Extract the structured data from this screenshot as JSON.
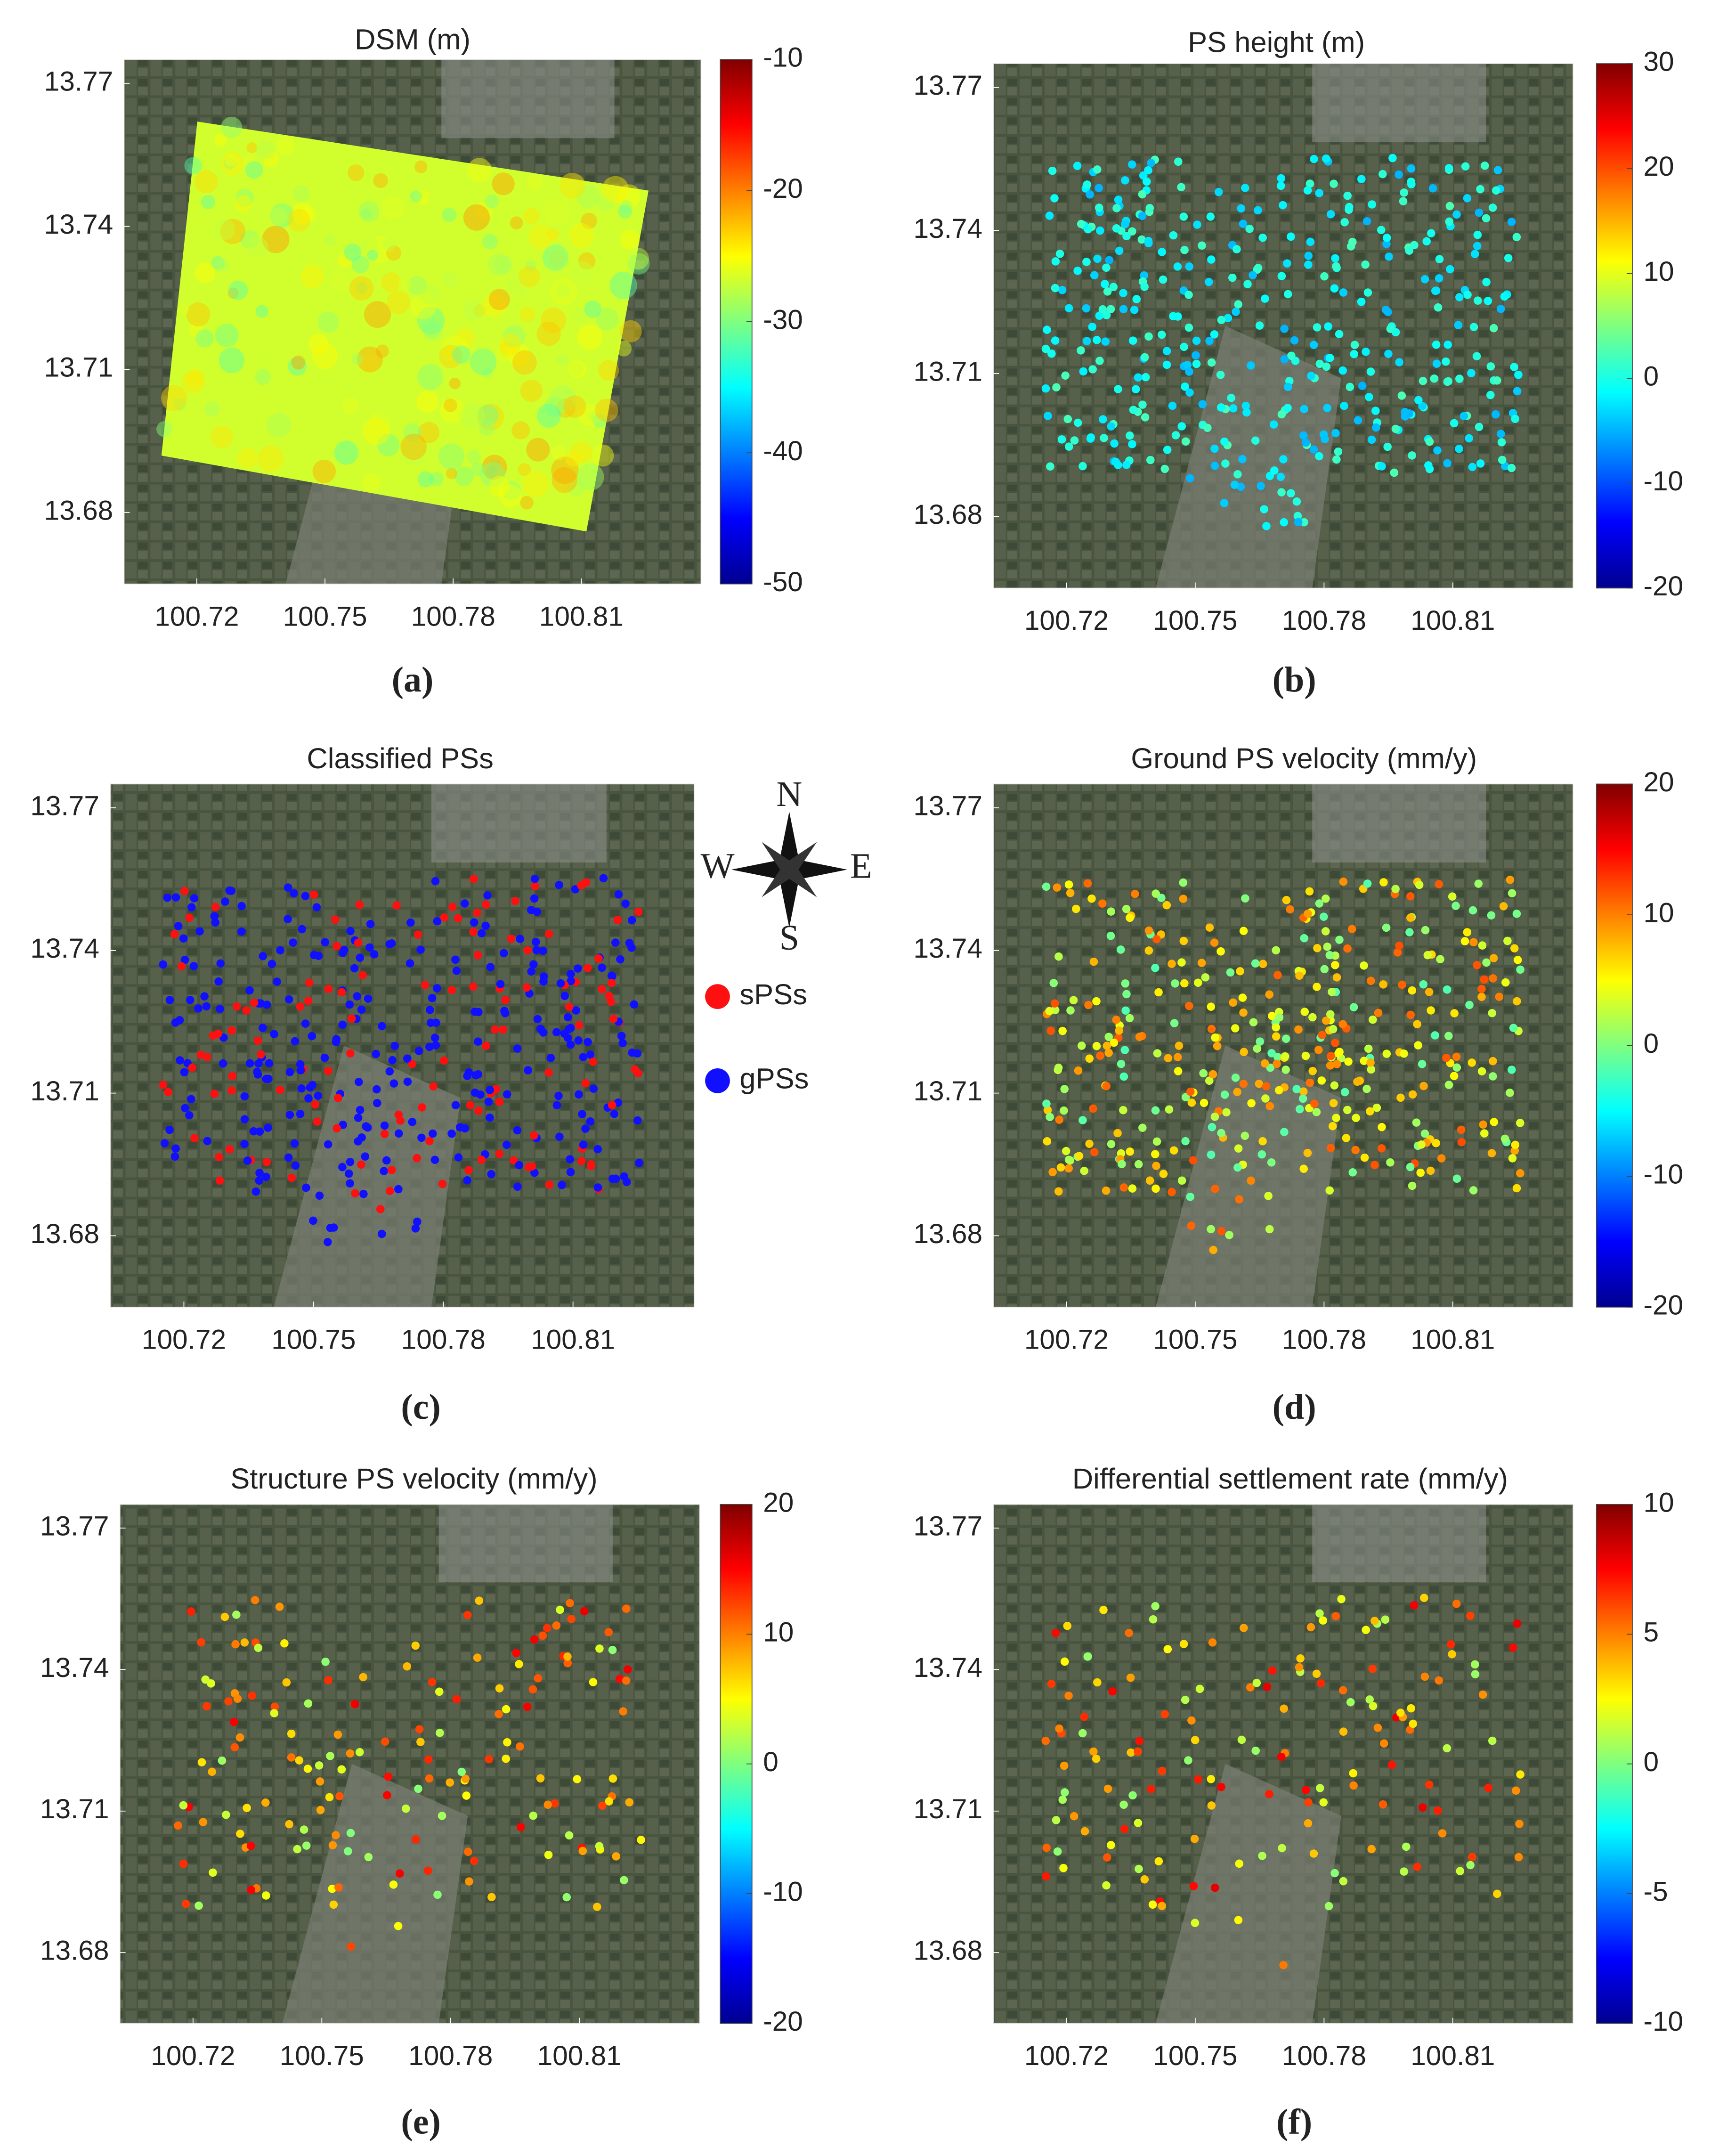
{
  "chart_data": [
    {
      "type": "map",
      "title": "DSM (m)",
      "panel_label": "(a)",
      "xlim": [
        100.703,
        100.838
      ],
      "ylim": [
        13.665,
        13.775
      ],
      "xticks": [
        100.72,
        100.75,
        100.78,
        100.81
      ],
      "yticks": [
        13.68,
        13.71,
        13.74,
        13.77
      ],
      "colorbar": {
        "lim": [
          -50,
          -10
        ],
        "ticks": [
          -50,
          -40,
          -30,
          -20,
          -10
        ]
      }
    },
    {
      "type": "map",
      "title": "PS height (m)",
      "panel_label": "(b)",
      "xlim": [
        100.703,
        100.838
      ],
      "ylim": [
        13.665,
        13.775
      ],
      "xticks": [
        100.72,
        100.75,
        100.78,
        100.81
      ],
      "yticks": [
        13.68,
        13.71,
        13.74,
        13.77
      ],
      "colorbar": {
        "lim": [
          -20,
          30
        ],
        "ticks": [
          -20,
          -10,
          0,
          10,
          20,
          30
        ]
      }
    },
    {
      "type": "map",
      "title": "Classified PSs",
      "panel_label": "(c)",
      "xlim": [
        100.703,
        100.838
      ],
      "ylim": [
        13.665,
        13.775
      ],
      "xticks": [
        100.72,
        100.75,
        100.78,
        100.81
      ],
      "yticks": [
        13.68,
        13.71,
        13.74,
        13.77
      ],
      "series": [
        {
          "name": "sPSs",
          "color": "#ff1010"
        },
        {
          "name": "gPSs",
          "color": "#1010ff"
        }
      ],
      "compass": [
        "N",
        "E",
        "S",
        "W"
      ]
    },
    {
      "type": "map",
      "title": "Ground PS velocity (mm/y)",
      "panel_label": "(d)",
      "xlim": [
        100.703,
        100.838
      ],
      "ylim": [
        13.665,
        13.775
      ],
      "xticks": [
        100.72,
        100.75,
        100.78,
        100.81
      ],
      "yticks": [
        13.68,
        13.71,
        13.74,
        13.77
      ],
      "colorbar": {
        "lim": [
          -20,
          20
        ],
        "ticks": [
          -20,
          -10,
          0,
          10,
          20
        ]
      }
    },
    {
      "type": "map",
      "title": "Structure PS velocity (mm/y)",
      "panel_label": "(e)",
      "xlim": [
        100.703,
        100.838
      ],
      "ylim": [
        13.665,
        13.775
      ],
      "xticks": [
        100.72,
        100.75,
        100.78,
        100.81
      ],
      "yticks": [
        13.68,
        13.71,
        13.74,
        13.77
      ],
      "colorbar": {
        "lim": [
          -20,
          20
        ],
        "ticks": [
          -20,
          -10,
          0,
          10,
          20
        ]
      }
    },
    {
      "type": "map",
      "title": "Differential settlement rate (mm/y)",
      "panel_label": "(f)",
      "xlim": [
        100.703,
        100.838
      ],
      "ylim": [
        13.665,
        13.775
      ],
      "xticks": [
        100.72,
        100.75,
        100.78,
        100.81
      ],
      "yticks": [
        13.68,
        13.71,
        13.74,
        13.77
      ],
      "colorbar": {
        "lim": [
          -10,
          10
        ],
        "ticks": [
          -10,
          -5,
          0,
          5,
          10
        ]
      }
    }
  ]
}
